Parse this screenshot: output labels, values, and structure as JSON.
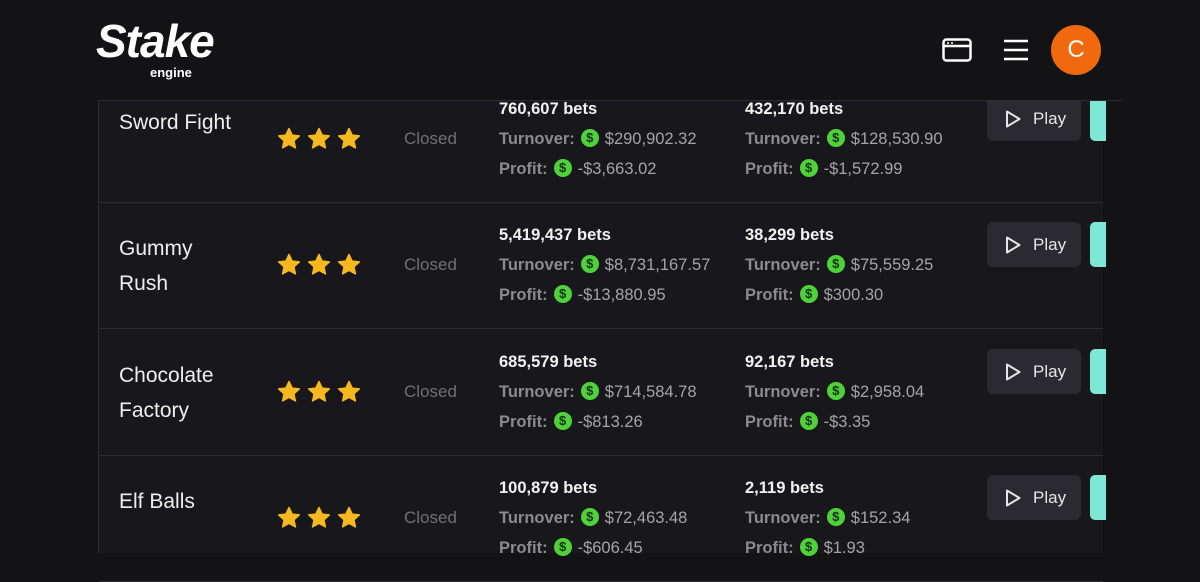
{
  "header": {
    "logo": "Stake",
    "logo_sub": "engine",
    "avatar": "C"
  },
  "labels": {
    "turnover": "Turnover:",
    "profit": "Profit:",
    "currency": "$",
    "play": "Play"
  },
  "rows": [
    {
      "name": "Sword Fight",
      "status": "Closed",
      "stats": [
        {
          "bets": "760,607 bets",
          "turnover": "$290,902.32",
          "profit": "-$3,663.02"
        },
        {
          "bets": "432,170 bets",
          "turnover": "$128,530.90",
          "profit": "-$1,572.99"
        }
      ]
    },
    {
      "name": "Gummy Rush",
      "status": "Closed",
      "stats": [
        {
          "bets": "5,419,437 bets",
          "turnover": "$8,731,167.57",
          "profit": "-$13,880.95"
        },
        {
          "bets": "38,299 bets",
          "turnover": "$75,559.25",
          "profit": "$300.30"
        }
      ]
    },
    {
      "name": "Chocolate Factory",
      "status": "Closed",
      "stats": [
        {
          "bets": "685,579 bets",
          "turnover": "$714,584.78",
          "profit": "-$813.26"
        },
        {
          "bets": "92,167 bets",
          "turnover": "$2,958.04",
          "profit": "-$3.35"
        }
      ]
    },
    {
      "name": "Elf Balls",
      "status": "Closed",
      "stats": [
        {
          "bets": "100,879 bets",
          "turnover": "$72,463.48",
          "profit": "-$606.45"
        },
        {
          "bets": "2,119 bets",
          "turnover": "$152.34",
          "profit": "$1.93"
        }
      ]
    }
  ]
}
